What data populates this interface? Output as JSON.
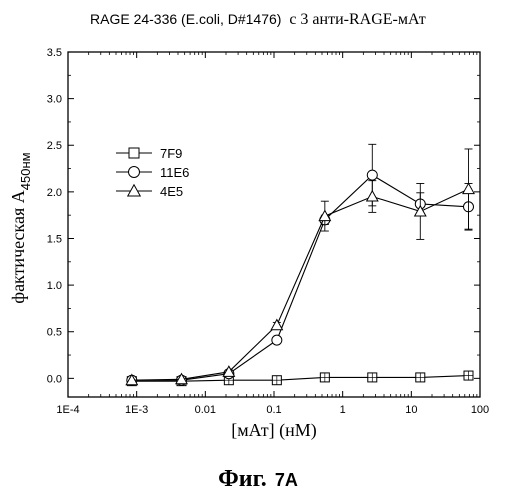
{
  "chart_data": {
    "type": "scatter",
    "title_sans": "RAGE 24-336 (E.coli, D#1476)",
    "title_serif": "с 3 анти-RAGE-мАт",
    "xlabel": "[мАт] (нМ)",
    "ylabel_main": "фактическая A",
    "ylabel_sub": "450нм",
    "x_scale": "log",
    "xlim": [
      0.0001,
      100
    ],
    "ylim": [
      -0.2,
      3.5
    ],
    "x_ticks": [
      {
        "v": 0.0001,
        "label": "1E-4"
      },
      {
        "v": 0.001,
        "label": "1E-3"
      },
      {
        "v": 0.01,
        "label": "0.01"
      },
      {
        "v": 0.1,
        "label": "0.1"
      },
      {
        "v": 1,
        "label": "1"
      },
      {
        "v": 10,
        "label": "10"
      },
      {
        "v": 100,
        "label": "100"
      }
    ],
    "y_ticks": [
      {
        "v": 0.0,
        "label": "0.0"
      },
      {
        "v": 0.5,
        "label": "0.5"
      },
      {
        "v": 1.0,
        "label": "1.0"
      },
      {
        "v": 1.5,
        "label": "1.5"
      },
      {
        "v": 2.0,
        "label": "2.0"
      },
      {
        "v": 2.5,
        "label": "2.5"
      },
      {
        "v": 3.0,
        "label": "3.0"
      },
      {
        "v": 3.5,
        "label": "3.5"
      }
    ],
    "legend_position": "top-left",
    "series": [
      {
        "name": "7F9",
        "marker": "square",
        "x": [
          0.00085,
          0.0045,
          0.022,
          0.11,
          0.55,
          2.7,
          13.5,
          68
        ],
        "y": [
          -0.03,
          -0.03,
          -0.02,
          -0.02,
          0.01,
          0.01,
          0.01,
          0.03
        ],
        "err": [
          0,
          0,
          0,
          0,
          0,
          0,
          0,
          0
        ]
      },
      {
        "name": "11E6",
        "marker": "circle",
        "x": [
          0.00085,
          0.0045,
          0.022,
          0.11,
          0.55,
          2.7,
          13.5,
          68
        ],
        "y": [
          -0.02,
          -0.02,
          0.05,
          0.41,
          1.7,
          2.18,
          1.87,
          1.84
        ],
        "err": [
          0,
          0,
          0,
          0.03,
          0.05,
          0.33,
          0.12,
          0.25
        ]
      },
      {
        "name": "4E5",
        "marker": "triangle",
        "x": [
          0.00085,
          0.0045,
          0.022,
          0.11,
          0.55,
          2.7,
          13.5,
          68
        ],
        "y": [
          -0.02,
          -0.01,
          0.07,
          0.57,
          1.74,
          1.95,
          1.79,
          2.03
        ],
        "err": [
          0,
          0,
          0,
          0.03,
          0.16,
          0.17,
          0.3,
          0.43
        ]
      }
    ]
  },
  "caption": {
    "prefix": "Фиг.",
    "suffix": "7A"
  }
}
